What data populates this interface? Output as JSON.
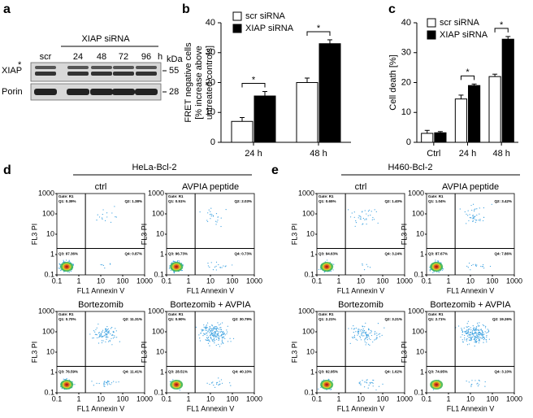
{
  "panel_labels": [
    "a",
    "b",
    "c",
    "d",
    "e"
  ],
  "blot": {
    "header": "XIAP siRNA",
    "lanes": [
      "scr",
      "24",
      "48",
      "72",
      "96"
    ],
    "unit": "h",
    "kda_label": "kDa",
    "rows": [
      {
        "label": "XIAP",
        "marker": "*",
        "kda": 55
      },
      {
        "label": "Porin",
        "kda": 28
      }
    ]
  },
  "chart_data": [
    {
      "type": "bar",
      "ylabel": [
        "FRET negative cells",
        "[% increase above",
        "untreated controls]"
      ],
      "categories": [
        "24 h",
        "48 h"
      ],
      "series": [
        {
          "name": "scr siRNA",
          "color": "#ffffff",
          "values": [
            7,
            20
          ],
          "errors": [
            1.3,
            1.5
          ]
        },
        {
          "name": "XIAP siRNA",
          "color": "#000000",
          "values": [
            15.5,
            33
          ],
          "errors": [
            1.5,
            1.3
          ]
        }
      ],
      "significance": [
        "*",
        "*"
      ],
      "ylim": [
        0,
        40
      ],
      "yticks": [
        0,
        10,
        20,
        30,
        40
      ]
    },
    {
      "type": "bar",
      "ylabel": [
        "Cell death [%]"
      ],
      "categories": [
        "Ctrl",
        "24 h",
        "48 h"
      ],
      "series": [
        {
          "name": "scr siRNA",
          "color": "#ffffff",
          "values": [
            3,
            14.5,
            22
          ],
          "errors": [
            1,
            1.3,
            0.8
          ]
        },
        {
          "name": "XIAP siRNA",
          "color": "#000000",
          "values": [
            3.2,
            19,
            34.5
          ],
          "errors": [
            0.4,
            0.5,
            0.9
          ]
        }
      ],
      "significance": [
        null,
        "*",
        "*"
      ],
      "ylim": [
        0,
        40
      ],
      "yticks": [
        0,
        10,
        20,
        30,
        40
      ]
    }
  ],
  "flow": {
    "xlabel": "FL1 Annexin V",
    "ylabel": "FL3 PI",
    "ticks": [
      0.1,
      1,
      10,
      100,
      1000
    ],
    "gate": "Gate: R1",
    "panels": [
      {
        "title": "HeLa-Bcl-2",
        "plots": [
          {
            "title": "ctrl",
            "quadrants": [
              "Q1: 0.39%",
              "Q2: 1.38%",
              "Q3: 97.36%",
              "Q4: 0.87%"
            ]
          },
          {
            "title": "AVPIA peptide",
            "quadrants": [
              "Q1: 0.51%",
              "Q2: 2.03%",
              "Q3: 96.73%",
              "Q4: 0.73%"
            ]
          },
          {
            "title": "Bortezomib",
            "quadrants": [
              "Q1: 0.70%",
              "Q2: 11.31%",
              "Q3: 76.59%",
              "Q4: 11.41%"
            ]
          },
          {
            "title": "Bortezomib + AVPIA",
            "quadrants": [
              "Q1: 0.90%",
              "Q2: 30.79%",
              "Q3: 28.51%",
              "Q4: 40.10%"
            ]
          }
        ]
      },
      {
        "title": "H460-Bcl-2",
        "plots": [
          {
            "title": "ctrl",
            "quadrants": [
              "Q1: 0.65%",
              "Q2: 1.40%",
              "Q3: 94.63%",
              "Q4: 3.24%"
            ]
          },
          {
            "title": "AVPIA peptide",
            "quadrants": [
              "Q1: 1.04%",
              "Q2: 3.42%",
              "Q3: 87.67%",
              "Q4: 7.86%"
            ]
          },
          {
            "title": "Bortezomib",
            "quadrants": [
              "Q1: 2.21%",
              "Q2: 3.21%",
              "Q3: 92.95%",
              "Q4: 1.62%"
            ]
          },
          {
            "title": "Bortezomib + AVPIA",
            "quadrants": [
              "Q1: 2.71%",
              "Q2: 19.26%",
              "Q3: 74.95%",
              "Q4: 3.10%"
            ]
          }
        ]
      }
    ]
  }
}
